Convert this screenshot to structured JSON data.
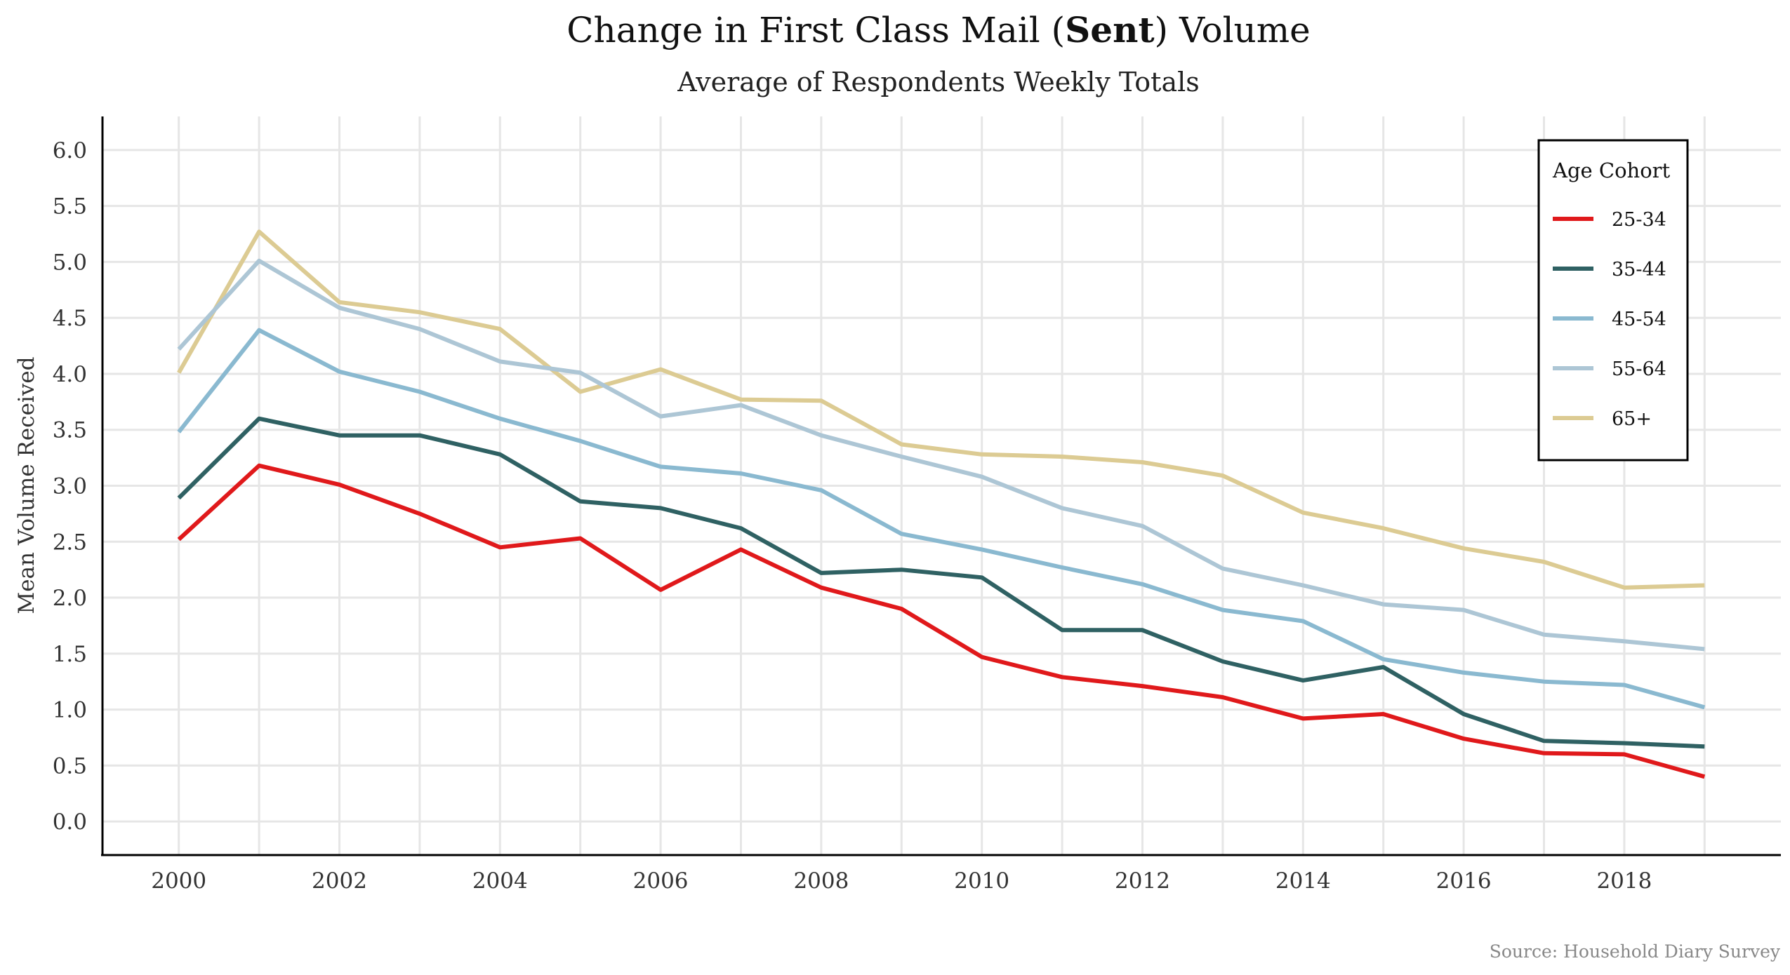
{
  "chart_data": {
    "type": "line",
    "title_prefix": "Change in First Class Mail (",
    "title_bold": "Sent",
    "title_suffix": ") Volume",
    "subtitle": "Average of Respondents Weekly Totals",
    "xlabel": "",
    "ylabel": "Mean Volume Received",
    "caption": "Source: Household Diary Survey",
    "x": [
      2000,
      2001,
      2002,
      2003,
      2004,
      2005,
      2006,
      2007,
      2008,
      2009,
      2010,
      2011,
      2012,
      2013,
      2014,
      2015,
      2016,
      2017,
      2018,
      2019
    ],
    "x_ticks": [
      "2000",
      "2002",
      "2004",
      "2006",
      "2008",
      "2010",
      "2012",
      "2014",
      "2016",
      "2018"
    ],
    "y_ticks": [
      "0.0",
      "0.5",
      "1.0",
      "1.5",
      "2.0",
      "2.5",
      "3.0",
      "3.5",
      "4.0",
      "4.5",
      "5.0",
      "5.5",
      "6.0"
    ],
    "xlim": [
      1999.05,
      2019.95
    ],
    "ylim": [
      -0.3,
      6.3
    ],
    "grid": true,
    "legend": {
      "title": "Age Cohort",
      "position": "top-right"
    },
    "series": [
      {
        "name": "25-34",
        "color": "#e0191b",
        "values": [
          2.52,
          3.18,
          3.01,
          2.75,
          2.45,
          2.53,
          2.07,
          2.43,
          2.09,
          1.9,
          1.47,
          1.29,
          1.21,
          1.11,
          0.92,
          0.96,
          0.74,
          0.61,
          0.6,
          0.4
        ]
      },
      {
        "name": "35-44",
        "color": "#2f6163",
        "values": [
          2.89,
          3.6,
          3.45,
          3.45,
          3.28,
          2.86,
          2.8,
          2.62,
          2.22,
          2.25,
          2.18,
          1.71,
          1.71,
          1.43,
          1.26,
          1.38,
          0.96,
          0.72,
          0.7,
          0.67
        ]
      },
      {
        "name": "45-54",
        "color": "#8ab9d0",
        "values": [
          3.48,
          4.39,
          4.02,
          3.84,
          3.6,
          3.4,
          3.17,
          3.11,
          2.96,
          2.57,
          2.43,
          2.27,
          2.12,
          1.89,
          1.79,
          1.45,
          1.33,
          1.25,
          1.22,
          1.02
        ]
      },
      {
        "name": "55-64",
        "color": "#adc6d5",
        "values": [
          4.22,
          5.01,
          4.59,
          4.4,
          4.11,
          4.01,
          3.62,
          3.72,
          3.45,
          3.26,
          3.08,
          2.8,
          2.64,
          2.26,
          2.11,
          1.94,
          1.89,
          1.67,
          1.61,
          1.54
        ]
      },
      {
        "name": "65+",
        "color": "#dccb93",
        "values": [
          4.01,
          5.27,
          4.64,
          4.55,
          4.4,
          3.84,
          4.04,
          3.77,
          3.76,
          3.37,
          3.28,
          3.26,
          3.21,
          3.09,
          2.76,
          2.62,
          2.44,
          2.32,
          2.09,
          2.11
        ]
      }
    ]
  }
}
